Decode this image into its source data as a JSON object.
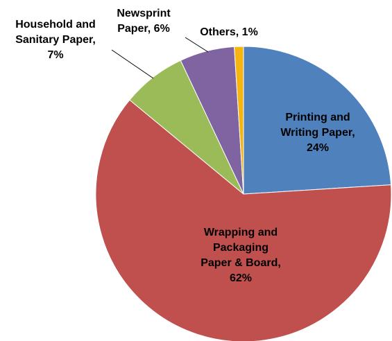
{
  "chart_data": {
    "type": "pie",
    "title": "",
    "start": "12 o'clock",
    "direction": "clockwise",
    "legend": "none",
    "slices": [
      {
        "name": "Printing and Writing Paper",
        "value": 24,
        "color": "#4F81BD",
        "label_lines": [
          "Printing and",
          "Writing Paper,",
          "24%"
        ],
        "label_placement": "inside"
      },
      {
        "name": "Wrapping and Packaging Paper & Board",
        "value": 62,
        "color": "#C0504D",
        "label_lines": [
          "Wrapping and",
          "Packaging",
          "Paper & Board,",
          "62%"
        ],
        "label_placement": "inside"
      },
      {
        "name": "Household and Sanitary Paper",
        "value": 7,
        "color": "#9BBB59",
        "label_lines": [
          "Household and",
          "Sanitary Paper,",
          "7%"
        ],
        "label_placement": "outside"
      },
      {
        "name": "Newsprint Paper",
        "value": 6,
        "color": "#8064A2",
        "label_lines": [
          "Newsprint",
          "Paper, 6%"
        ],
        "label_placement": "outside"
      },
      {
        "name": "Others",
        "value": 1,
        "color": "#F5B40F",
        "label_lines": [
          "Others, 1%"
        ],
        "label_placement": "outside"
      }
    ]
  }
}
